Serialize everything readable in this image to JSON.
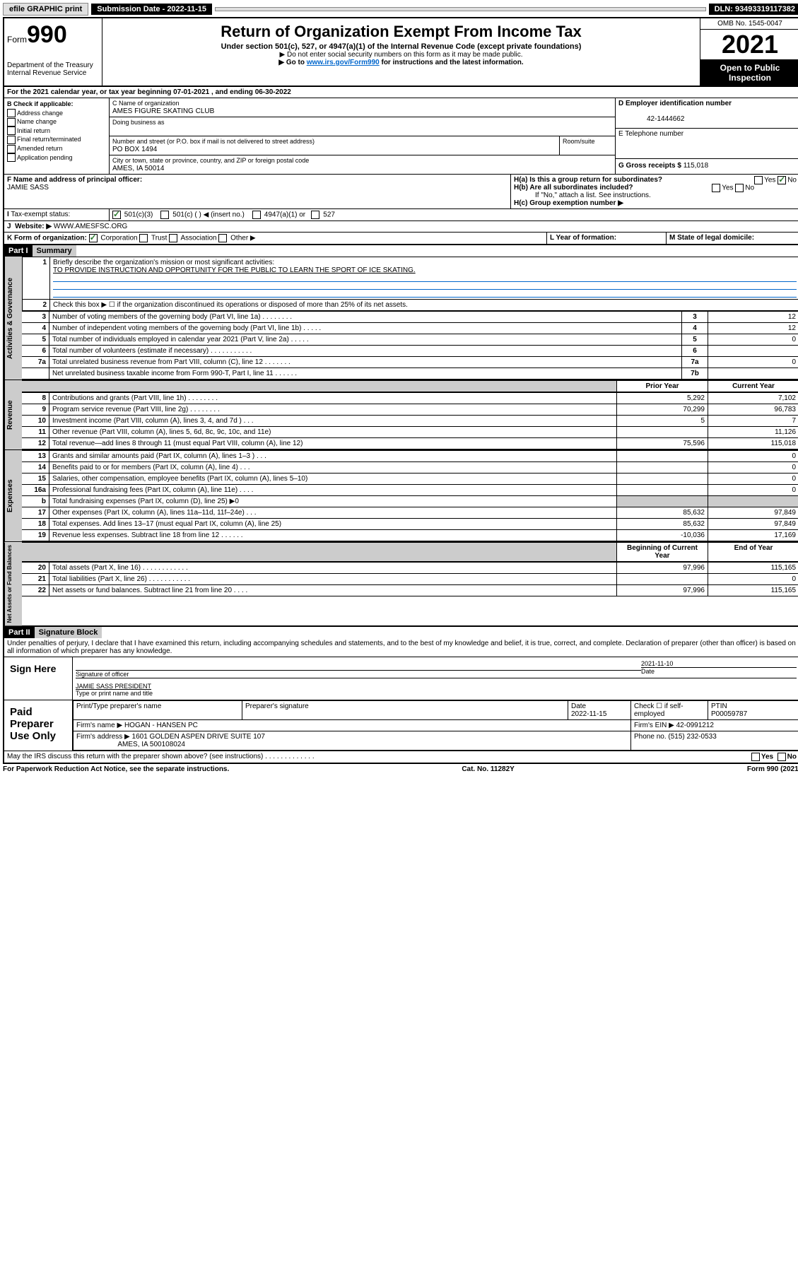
{
  "topbar": {
    "efile": "efile GRAPHIC print",
    "submission_label": "Submission Date - 2022-11-15",
    "dln": "DLN: 93493319117382"
  },
  "header": {
    "form_label": "Form",
    "form_number": "990",
    "dept": "Department of the Treasury\nInternal Revenue Service",
    "title": "Return of Organization Exempt From Income Tax",
    "subtitle": "Under section 501(c), 527, or 4947(a)(1) of the Internal Revenue Code (except private foundations)",
    "note1": "▶ Do not enter social security numbers on this form as it may be made public.",
    "note2_prefix": "▶ Go to ",
    "note2_link": "www.irs.gov/Form990",
    "note2_suffix": " for instructions and the latest information.",
    "omb": "OMB No. 1545-0047",
    "year": "2021",
    "open_public": "Open to Public Inspection"
  },
  "line_a": "For the 2021 calendar year, or tax year beginning 07-01-2021 , and ending 06-30-2022",
  "section_b": {
    "label": "B Check if applicable:",
    "items": [
      "Address change",
      "Name change",
      "Initial return",
      "Final return/terminated",
      "Amended return",
      "Application pending"
    ]
  },
  "section_c": {
    "name_label": "C Name of organization",
    "name": "AMES FIGURE SKATING CLUB",
    "dba_label": "Doing business as",
    "addr_label": "Number and street (or P.O. box if mail is not delivered to street address)",
    "room_label": "Room/suite",
    "addr": "PO BOX 1494",
    "city_label": "City or town, state or province, country, and ZIP or foreign postal code",
    "city": "AMES, IA  50014"
  },
  "section_d": {
    "label": "D Employer identification number",
    "value": "42-1444662"
  },
  "section_e": {
    "label": "E Telephone number"
  },
  "section_g": {
    "label": "G Gross receipts $",
    "value": "115,018"
  },
  "section_f": {
    "label": "F Name and address of principal officer:",
    "value": "JAMIE SASS"
  },
  "section_h": {
    "ha": "H(a)  Is this a group return for subordinates?",
    "hb": "H(b)  Are all subordinates included?",
    "hb_note": "If \"No,\" attach a list. See instructions.",
    "hc": "H(c)  Group exemption number ▶",
    "yes": "Yes",
    "no": "No"
  },
  "section_i": {
    "label": "Tax-exempt status:",
    "opt1": "501(c)(3)",
    "opt2": "501(c) (   ) ◀ (insert no.)",
    "opt3": "4947(a)(1) or",
    "opt4": "527"
  },
  "section_j": {
    "label": "Website: ▶",
    "value": "WWW.AMESFSC.ORG"
  },
  "section_k": {
    "label": "K Form of organization:",
    "opts": [
      "Corporation",
      "Trust",
      "Association",
      "Other ▶"
    ]
  },
  "section_l": "L Year of formation:",
  "section_m": "M State of legal domicile:",
  "part1": {
    "header": "Part I",
    "title": "Summary",
    "line1_label": "Briefly describe the organization's mission or most significant activities:",
    "line1_text": "TO PROVIDE INSTRUCTION AND OPPORTUNITY FOR THE PUBLIC TO LEARN THE SPORT OF ICE SKATING.",
    "line2": "Check this box ▶ ☐  if the organization discontinued its operations or disposed of more than 25% of its net assets.",
    "governance_label": "Activities & Governance",
    "revenue_label": "Revenue",
    "expenses_label": "Expenses",
    "netassets_label": "Net Assets or Fund Balances",
    "rows_gov": [
      {
        "n": "3",
        "desc": "Number of voting members of the governing body (Part VI, line 1a) . . . . . . . .",
        "box": "3",
        "val": "12"
      },
      {
        "n": "4",
        "desc": "Number of independent voting members of the governing body (Part VI, line 1b) . . . . .",
        "box": "4",
        "val": "12"
      },
      {
        "n": "5",
        "desc": "Total number of individuals employed in calendar year 2021 (Part V, line 2a) . . . . .",
        "box": "5",
        "val": "0"
      },
      {
        "n": "6",
        "desc": "Total number of volunteers (estimate if necessary) . . . . . . . . . . .",
        "box": "6",
        "val": ""
      },
      {
        "n": "7a",
        "desc": "Total unrelated business revenue from Part VIII, column (C), line 12 . . . . . . .",
        "box": "7a",
        "val": "0"
      },
      {
        "n": "",
        "desc": "Net unrelated business taxable income from Form 990-T, Part I, line 11 . . . . . .",
        "box": "7b",
        "val": ""
      }
    ],
    "col_prior": "Prior Year",
    "col_current": "Current Year",
    "col_begin": "Beginning of Current Year",
    "col_end": "End of Year",
    "rows_rev": [
      {
        "n": "8",
        "desc": "Contributions and grants (Part VIII, line 1h) . . . . . . . .",
        "prior": "5,292",
        "curr": "7,102"
      },
      {
        "n": "9",
        "desc": "Program service revenue (Part VIII, line 2g) . . . . . . . .",
        "prior": "70,299",
        "curr": "96,783"
      },
      {
        "n": "10",
        "desc": "Investment income (Part VIII, column (A), lines 3, 4, and 7d ) . . .",
        "prior": "5",
        "curr": "7"
      },
      {
        "n": "11",
        "desc": "Other revenue (Part VIII, column (A), lines 5, 6d, 8c, 9c, 10c, and 11e)",
        "prior": "",
        "curr": "11,126"
      },
      {
        "n": "12",
        "desc": "Total revenue—add lines 8 through 11 (must equal Part VIII, column (A), line 12)",
        "prior": "75,596",
        "curr": "115,018"
      }
    ],
    "rows_exp": [
      {
        "n": "13",
        "desc": "Grants and similar amounts paid (Part IX, column (A), lines 1–3 ) . . .",
        "prior": "",
        "curr": "0"
      },
      {
        "n": "14",
        "desc": "Benefits paid to or for members (Part IX, column (A), line 4) . . .",
        "prior": "",
        "curr": "0"
      },
      {
        "n": "15",
        "desc": "Salaries, other compensation, employee benefits (Part IX, column (A), lines 5–10)",
        "prior": "",
        "curr": "0"
      },
      {
        "n": "16a",
        "desc": "Professional fundraising fees (Part IX, column (A), line 11e) . . . .",
        "prior": "",
        "curr": "0"
      },
      {
        "n": "b",
        "desc": "Total fundraising expenses (Part IX, column (D), line 25) ▶0",
        "prior": "SHADE",
        "curr": "SHADE"
      },
      {
        "n": "17",
        "desc": "Other expenses (Part IX, column (A), lines 11a–11d, 11f–24e) . . .",
        "prior": "85,632",
        "curr": "97,849"
      },
      {
        "n": "18",
        "desc": "Total expenses. Add lines 13–17 (must equal Part IX, column (A), line 25)",
        "prior": "85,632",
        "curr": "97,849"
      },
      {
        "n": "19",
        "desc": "Revenue less expenses. Subtract line 18 from line 12 . . . . . .",
        "prior": "-10,036",
        "curr": "17,169"
      }
    ],
    "rows_net": [
      {
        "n": "20",
        "desc": "Total assets (Part X, line 16) . . . . . . . . . . . .",
        "prior": "97,996",
        "curr": "115,165"
      },
      {
        "n": "21",
        "desc": "Total liabilities (Part X, line 26) . . . . . . . . . . .",
        "prior": "",
        "curr": "0"
      },
      {
        "n": "22",
        "desc": "Net assets or fund balances. Subtract line 21 from line 20 . . . .",
        "prior": "97,996",
        "curr": "115,165"
      }
    ]
  },
  "part2": {
    "header": "Part II",
    "title": "Signature Block",
    "declaration": "Under penalties of perjury, I declare that I have examined this return, including accompanying schedules and statements, and to the best of my knowledge and belief, it is true, correct, and complete. Declaration of preparer (other than officer) is based on all information of which preparer has any knowledge.",
    "sign_here": "Sign Here",
    "sig_officer": "Signature of officer",
    "sig_date_label": "Date",
    "sig_date": "2021-11-10",
    "officer_name": "JAMIE SASS PRESIDENT",
    "officer_title_label": "Type or print name and title",
    "paid_label": "Paid Preparer Use Only",
    "prep_name_label": "Print/Type preparer's name",
    "prep_sig_label": "Preparer's signature",
    "prep_date_label": "Date",
    "prep_date": "2022-11-15",
    "check_if": "Check ☐ if self-employed",
    "ptin_label": "PTIN",
    "ptin": "P00059787",
    "firm_name_label": "Firm's name     ▶",
    "firm_name": "HOGAN - HANSEN PC",
    "firm_ein_label": "Firm's EIN ▶",
    "firm_ein": "42-0991212",
    "firm_addr_label": "Firm's address ▶",
    "firm_addr": "1601 GOLDEN ASPEN DRIVE SUITE 107",
    "firm_city": "AMES, IA  500108024",
    "phone_label": "Phone no.",
    "phone": "(515) 232-0533",
    "may_irs": "May the IRS discuss this return with the preparer shown above? (see instructions) . . . . . . . . . . . . .",
    "yes": "Yes",
    "no": "No"
  },
  "footer": {
    "left": "For Paperwork Reduction Act Notice, see the separate instructions.",
    "center": "Cat. No. 11282Y",
    "right": "Form 990 (2021)"
  }
}
